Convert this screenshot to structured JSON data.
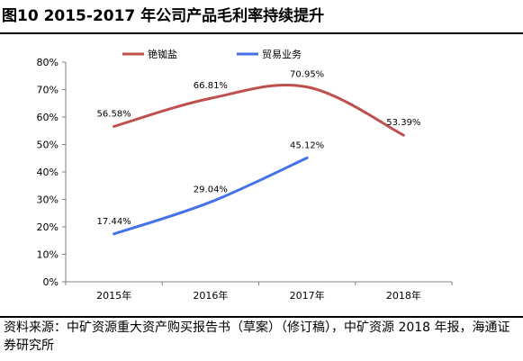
{
  "title": "图10 2015-2017 年公司产品毛利率持续提升",
  "source_text": "资料来源：中矿资源重大资产购买报告书（草案）（修订稿），中矿资源 2018 年报，海通证券研究所",
  "chart_data": {
    "type": "line",
    "categories": [
      "2015年",
      "2016年",
      "2017年",
      "2018年"
    ],
    "ylim": [
      0,
      80
    ],
    "yticks": [
      "0%",
      "10%",
      "20%",
      "30%",
      "40%",
      "50%",
      "60%",
      "70%",
      "80%"
    ],
    "grid": false,
    "legend_position": "top-center",
    "series": [
      {
        "name": "铯铷盐",
        "color": "#C0504D",
        "values": [
          56.58,
          66.81,
          70.95,
          53.39
        ],
        "labels": [
          "56.58%",
          "66.81%",
          "70.95%",
          "53.39%"
        ]
      },
      {
        "name": "贸易业务",
        "color": "#4472E8",
        "values": [
          17.44,
          29.04,
          45.12,
          null
        ],
        "labels": [
          "17.44%",
          "29.04%",
          "45.12%",
          null
        ]
      }
    ]
  }
}
